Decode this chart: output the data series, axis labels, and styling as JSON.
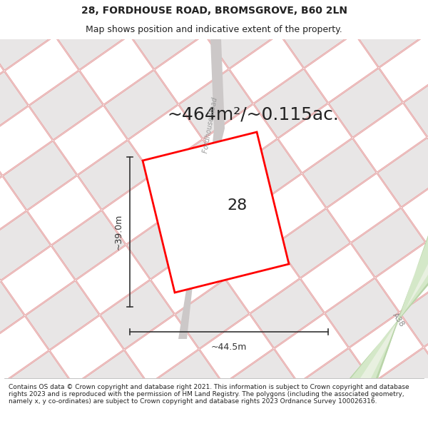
{
  "title": "28, FORDHOUSE ROAD, BROMSGROVE, B60 2LN",
  "subtitle": "Map shows position and indicative extent of the property.",
  "area_text": "~464m²/~0.115ac.",
  "label_28": "28",
  "dim_width": "~44.5m",
  "dim_height": "~39.0m",
  "road_label": "Fordhouse Road",
  "road_label_a38": "A38",
  "copyright_text": "Contains OS data © Crown copyright and database right 2021. This information is subject to Crown copyright and database rights 2023 and is reproduced with the permission of HM Land Registry. The polygons (including the associated geometry, namely x, y co-ordinates) are subject to Crown copyright and database rights 2023 Ordnance Survey 100026316.",
  "map_bg": "#f5f3f3",
  "block_white": "#ffffff",
  "block_gray": "#e8e6e6",
  "parcel_edge_color": "#e8a0a0",
  "road_gray_color": "#c8c5c5",
  "green_road_fill": "#d4e8c8",
  "green_road_dark": "#b8d4a8",
  "green_road_stripe": "#e8f0e0",
  "plot_color": "#ff0000",
  "dim_color": "#333333",
  "text_color": "#222222",
  "figsize": [
    6.0,
    6.25
  ],
  "dpi": 100,
  "title_fontsize": 10,
  "subtitle_fontsize": 9,
  "area_fontsize": 18,
  "dim_fontsize": 9,
  "label28_fontsize": 16
}
